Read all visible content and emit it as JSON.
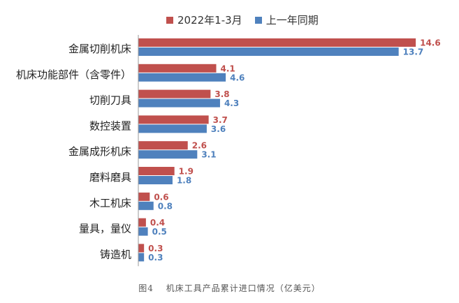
{
  "chart_data": {
    "type": "bar",
    "orientation": "horizontal",
    "categories": [
      "金属切削机床",
      "机床功能部件（含零件）",
      "切削刀具",
      "数控装置",
      "金属成形机床",
      "磨料磨具",
      "木工机床",
      "量具，量仪",
      "铸造机"
    ],
    "series": [
      {
        "name": "2022年1-3月",
        "values": [
          14.6,
          4.1,
          3.8,
          3.7,
          2.6,
          1.9,
          0.6,
          0.4,
          0.3
        ],
        "color": "#c0504d"
      },
      {
        "name": "上一年同期",
        "values": [
          13.7,
          4.6,
          4.3,
          3.6,
          3.1,
          1.8,
          0.8,
          0.5,
          0.3
        ],
        "color": "#4f81bd"
      }
    ],
    "xlim": [
      0,
      16
    ],
    "grid": false,
    "legend_position": "top",
    "data_labels": true
  },
  "caption": "图4　 机床工具产品累计进口情况（亿美元）"
}
